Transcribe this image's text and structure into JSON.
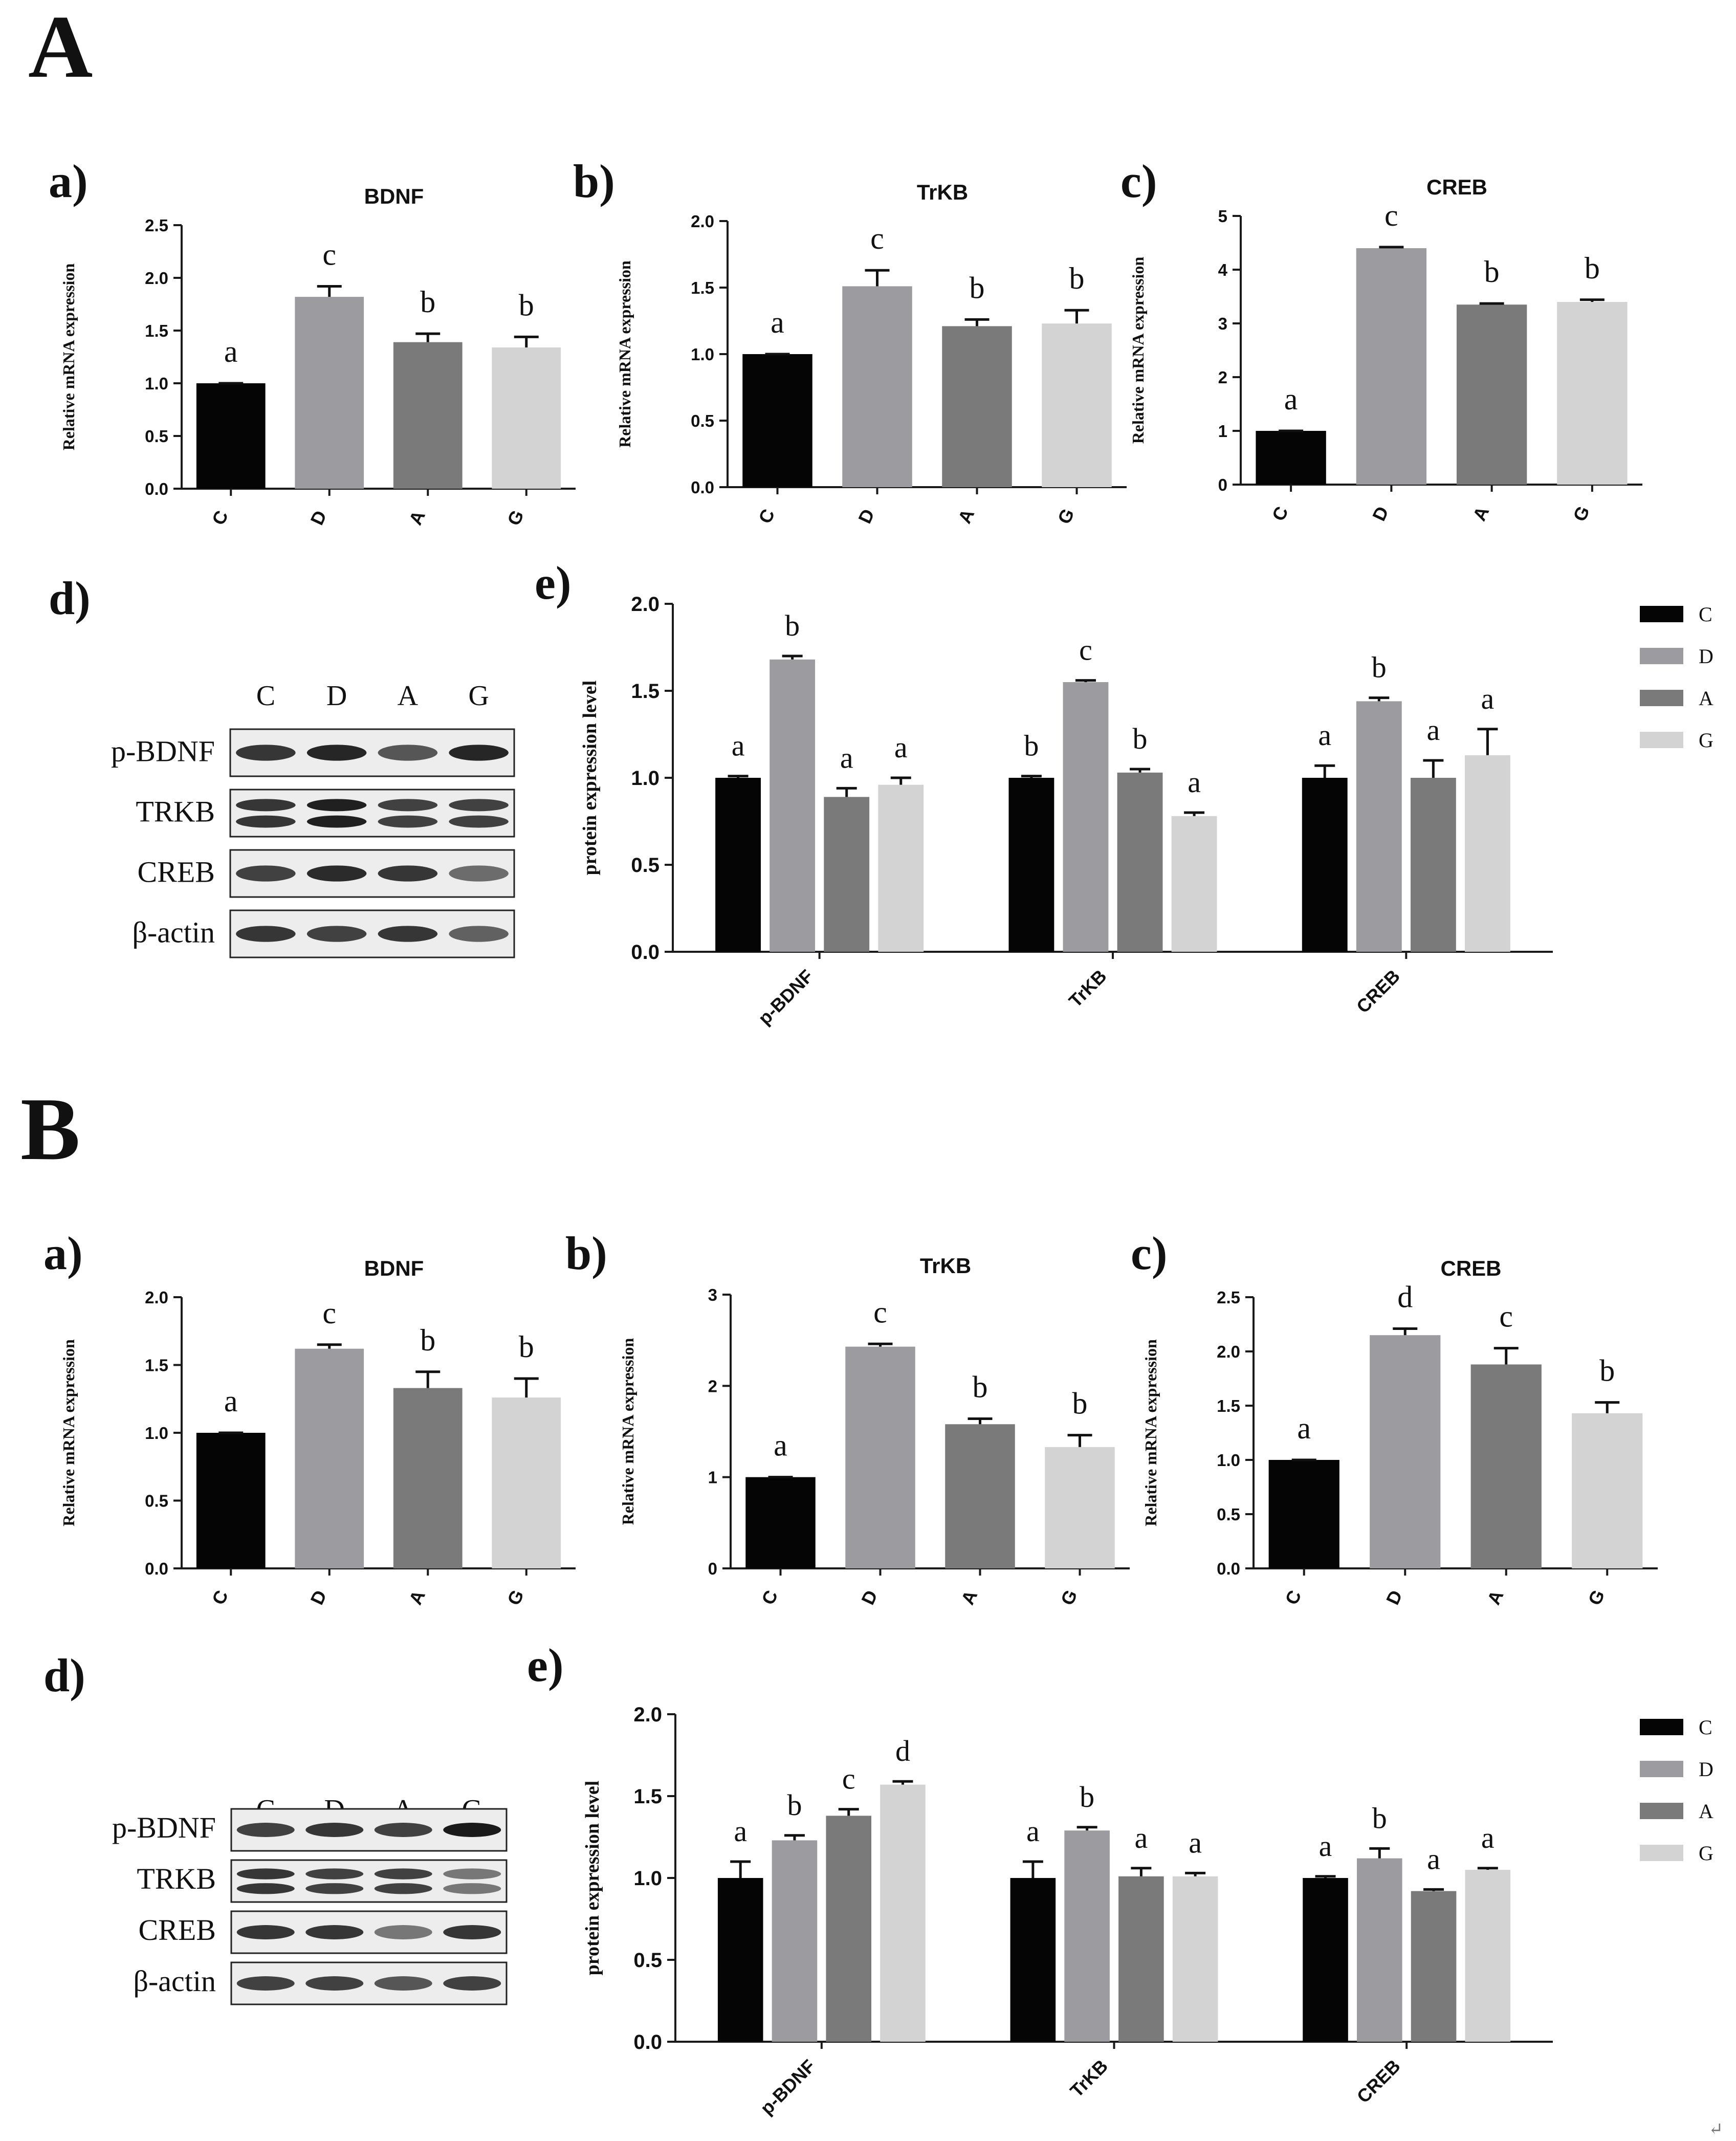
{
  "colors": {
    "C": "#050505",
    "D": "#9c9ca0",
    "A": "#7a7a7a",
    "G": "#d3d3d3",
    "axis": "#1a1a1a"
  },
  "sections": [
    {
      "label": "A",
      "mrna": [
        {
          "panel": "a)",
          "chart_data": {
            "type": "bar",
            "title": "BDNF",
            "ylabel": "Relative mRNA expression",
            "xlabel": "",
            "categories": [
              "C",
              "D",
              "A",
              "G"
            ],
            "values": [
              1.0,
              1.82,
              1.39,
              1.34
            ],
            "errors": [
              0,
              0.1,
              0.08,
              0.1
            ],
            "letters": [
              "a",
              "c",
              "b",
              "b"
            ],
            "ylim": [
              0,
              2.5
            ],
            "yticks": [
              "0.0",
              "0.5",
              "1.0",
              "1.5",
              "2.0",
              "2.5"
            ]
          }
        },
        {
          "panel": "b)",
          "chart_data": {
            "type": "bar",
            "title": "TrKB",
            "ylabel": "Relative mRNA expression",
            "xlabel": "",
            "categories": [
              "C",
              "D",
              "A",
              "G"
            ],
            "values": [
              1.0,
              1.51,
              1.21,
              1.23
            ],
            "errors": [
              0,
              0.12,
              0.05,
              0.1
            ],
            "letters": [
              "a",
              "c",
              "b",
              "b"
            ],
            "ylim": [
              0,
              2.0
            ],
            "yticks": [
              "0.0",
              "0.5",
              "1.0",
              "1.5",
              "2.0"
            ]
          }
        },
        {
          "panel": "c)",
          "chart_data": {
            "type": "bar",
            "title": "CREB",
            "ylabel": "Relative mRNA expression",
            "xlabel": "",
            "categories": [
              "C",
              "D",
              "A",
              "G"
            ],
            "values": [
              1.0,
              4.4,
              3.35,
              3.4
            ],
            "errors": [
              0,
              0.02,
              0.02,
              0.04
            ],
            "letters": [
              "a",
              "c",
              "b",
              "b"
            ],
            "ylim": [
              0,
              5
            ],
            "yticks": [
              "0",
              "1",
              "2",
              "3",
              "4",
              "5"
            ]
          }
        }
      ],
      "blot": {
        "panel": "d)",
        "lanes": [
          "C",
          "D",
          "A",
          "G"
        ],
        "rows": [
          "p-BDNF",
          "TRKB",
          "CREB",
          "β-actin"
        ]
      },
      "protein": {
        "panel": "e)",
        "chart_data": {
          "type": "bar",
          "ylabel": "protein expression level",
          "categories": [
            "p-BDNF",
            "TrKB",
            "CREB"
          ],
          "series": [
            {
              "name": "C",
              "values": [
                1.0,
                1.0,
                1.0
              ],
              "errors": [
                0.01,
                0.01,
                0.07
              ],
              "letters": [
                "a",
                "b",
                "a"
              ]
            },
            {
              "name": "D",
              "values": [
                1.68,
                1.55,
                1.44
              ],
              "errors": [
                0.02,
                0.01,
                0.02
              ],
              "letters": [
                "b",
                "c",
                "b"
              ]
            },
            {
              "name": "A",
              "values": [
                0.89,
                1.03,
                1.0
              ],
              "errors": [
                0.05,
                0.02,
                0.1
              ],
              "letters": [
                "a",
                "b",
                "a"
              ]
            },
            {
              "name": "G",
              "values": [
                0.96,
                0.78,
                1.13
              ],
              "errors": [
                0.04,
                0.02,
                0.15
              ],
              "letters": [
                "a",
                "a",
                "a"
              ]
            }
          ],
          "ylim": [
            0,
            2.0
          ],
          "yticks": [
            "0.0",
            "0.5",
            "1.0",
            "1.5",
            "2.0"
          ]
        }
      },
      "legend": [
        "C",
        "D",
        "A",
        "G"
      ]
    },
    {
      "label": "B",
      "mrna": [
        {
          "panel": "a)",
          "chart_data": {
            "type": "bar",
            "title": "BDNF",
            "ylabel": "Relative mRNA expression",
            "xlabel": "",
            "categories": [
              "C",
              "D",
              "A",
              "G"
            ],
            "values": [
              1.0,
              1.62,
              1.33,
              1.26
            ],
            "errors": [
              0,
              0.03,
              0.12,
              0.14
            ],
            "letters": [
              "a",
              "c",
              "b",
              "b"
            ],
            "ylim": [
              0,
              2.0
            ],
            "yticks": [
              "0.0",
              "0.5",
              "1.0",
              "1.5",
              "2.0"
            ]
          }
        },
        {
          "panel": "b)",
          "chart_data": {
            "type": "bar",
            "title": "TrKB",
            "ylabel": "Relative mRNA expression",
            "xlabel": "",
            "categories": [
              "C",
              "D",
              "A",
              "G"
            ],
            "values": [
              1.0,
              2.43,
              1.58,
              1.33
            ],
            "errors": [
              0,
              0.03,
              0.06,
              0.13
            ],
            "letters": [
              "a",
              "c",
              "b",
              "b"
            ],
            "ylim": [
              0,
              3
            ],
            "yticks": [
              "0",
              "1",
              "2",
              "3"
            ]
          }
        },
        {
          "panel": "c)",
          "chart_data": {
            "type": "bar",
            "title": "CREB",
            "ylabel": "Relative mRNA expression",
            "xlabel": "",
            "categories": [
              "C",
              "D",
              "A",
              "G"
            ],
            "values": [
              1.0,
              2.15,
              1.88,
              1.43
            ],
            "errors": [
              0,
              0.06,
              0.15,
              0.1
            ],
            "letters": [
              "a",
              "d",
              "c",
              "b"
            ],
            "ylim": [
              0,
              2.5
            ],
            "yticks": [
              "0.0",
              "0.5",
              "1.0",
              "1.5",
              "2.0",
              "2.5"
            ]
          }
        }
      ],
      "blot": {
        "panel": "d)",
        "lanes": [
          "C",
          "D",
          "A",
          "G"
        ],
        "rows": [
          "p-BDNF",
          "TRKB",
          "CREB",
          "β-actin"
        ]
      },
      "protein": {
        "panel": "e)",
        "chart_data": {
          "type": "bar",
          "ylabel": "protein expression level",
          "categories": [
            "p-BDNF",
            "TrKB",
            "CREB"
          ],
          "series": [
            {
              "name": "C",
              "values": [
                1.0,
                1.0,
                1.0
              ],
              "errors": [
                0.1,
                0.1,
                0.01
              ],
              "letters": [
                "a",
                "a",
                "a"
              ]
            },
            {
              "name": "D",
              "values": [
                1.23,
                1.29,
                1.12
              ],
              "errors": [
                0.03,
                0.02,
                0.06
              ],
              "letters": [
                "b",
                "b",
                "b"
              ]
            },
            {
              "name": "A",
              "values": [
                1.38,
                1.01,
                0.92
              ],
              "errors": [
                0.04,
                0.05,
                0.01
              ],
              "letters": [
                "c",
                "a",
                "a"
              ]
            },
            {
              "name": "G",
              "values": [
                1.57,
                1.01,
                1.05
              ],
              "errors": [
                0.02,
                0.02,
                0.01
              ],
              "letters": [
                "d",
                "a",
                "a"
              ]
            }
          ],
          "ylim": [
            0,
            2.0
          ],
          "yticks": [
            "0.0",
            "0.5",
            "1.0",
            "1.5",
            "2.0"
          ]
        }
      },
      "legend": [
        "C",
        "D",
        "A",
        "G"
      ]
    }
  ],
  "corner_mark": "↵"
}
